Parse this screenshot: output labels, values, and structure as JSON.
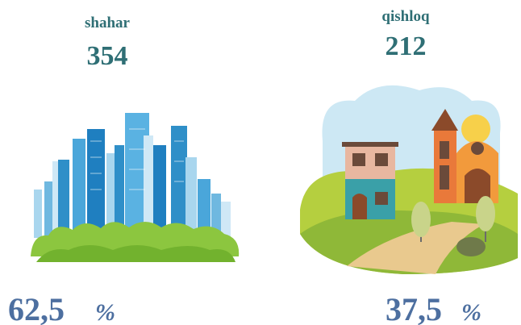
{
  "left": {
    "label": "shahar",
    "count": "354",
    "percent": "62,5",
    "unit": "%"
  },
  "right": {
    "label": "qishloq",
    "count": "212",
    "percent": "37,5",
    "unit": "%"
  }
}
